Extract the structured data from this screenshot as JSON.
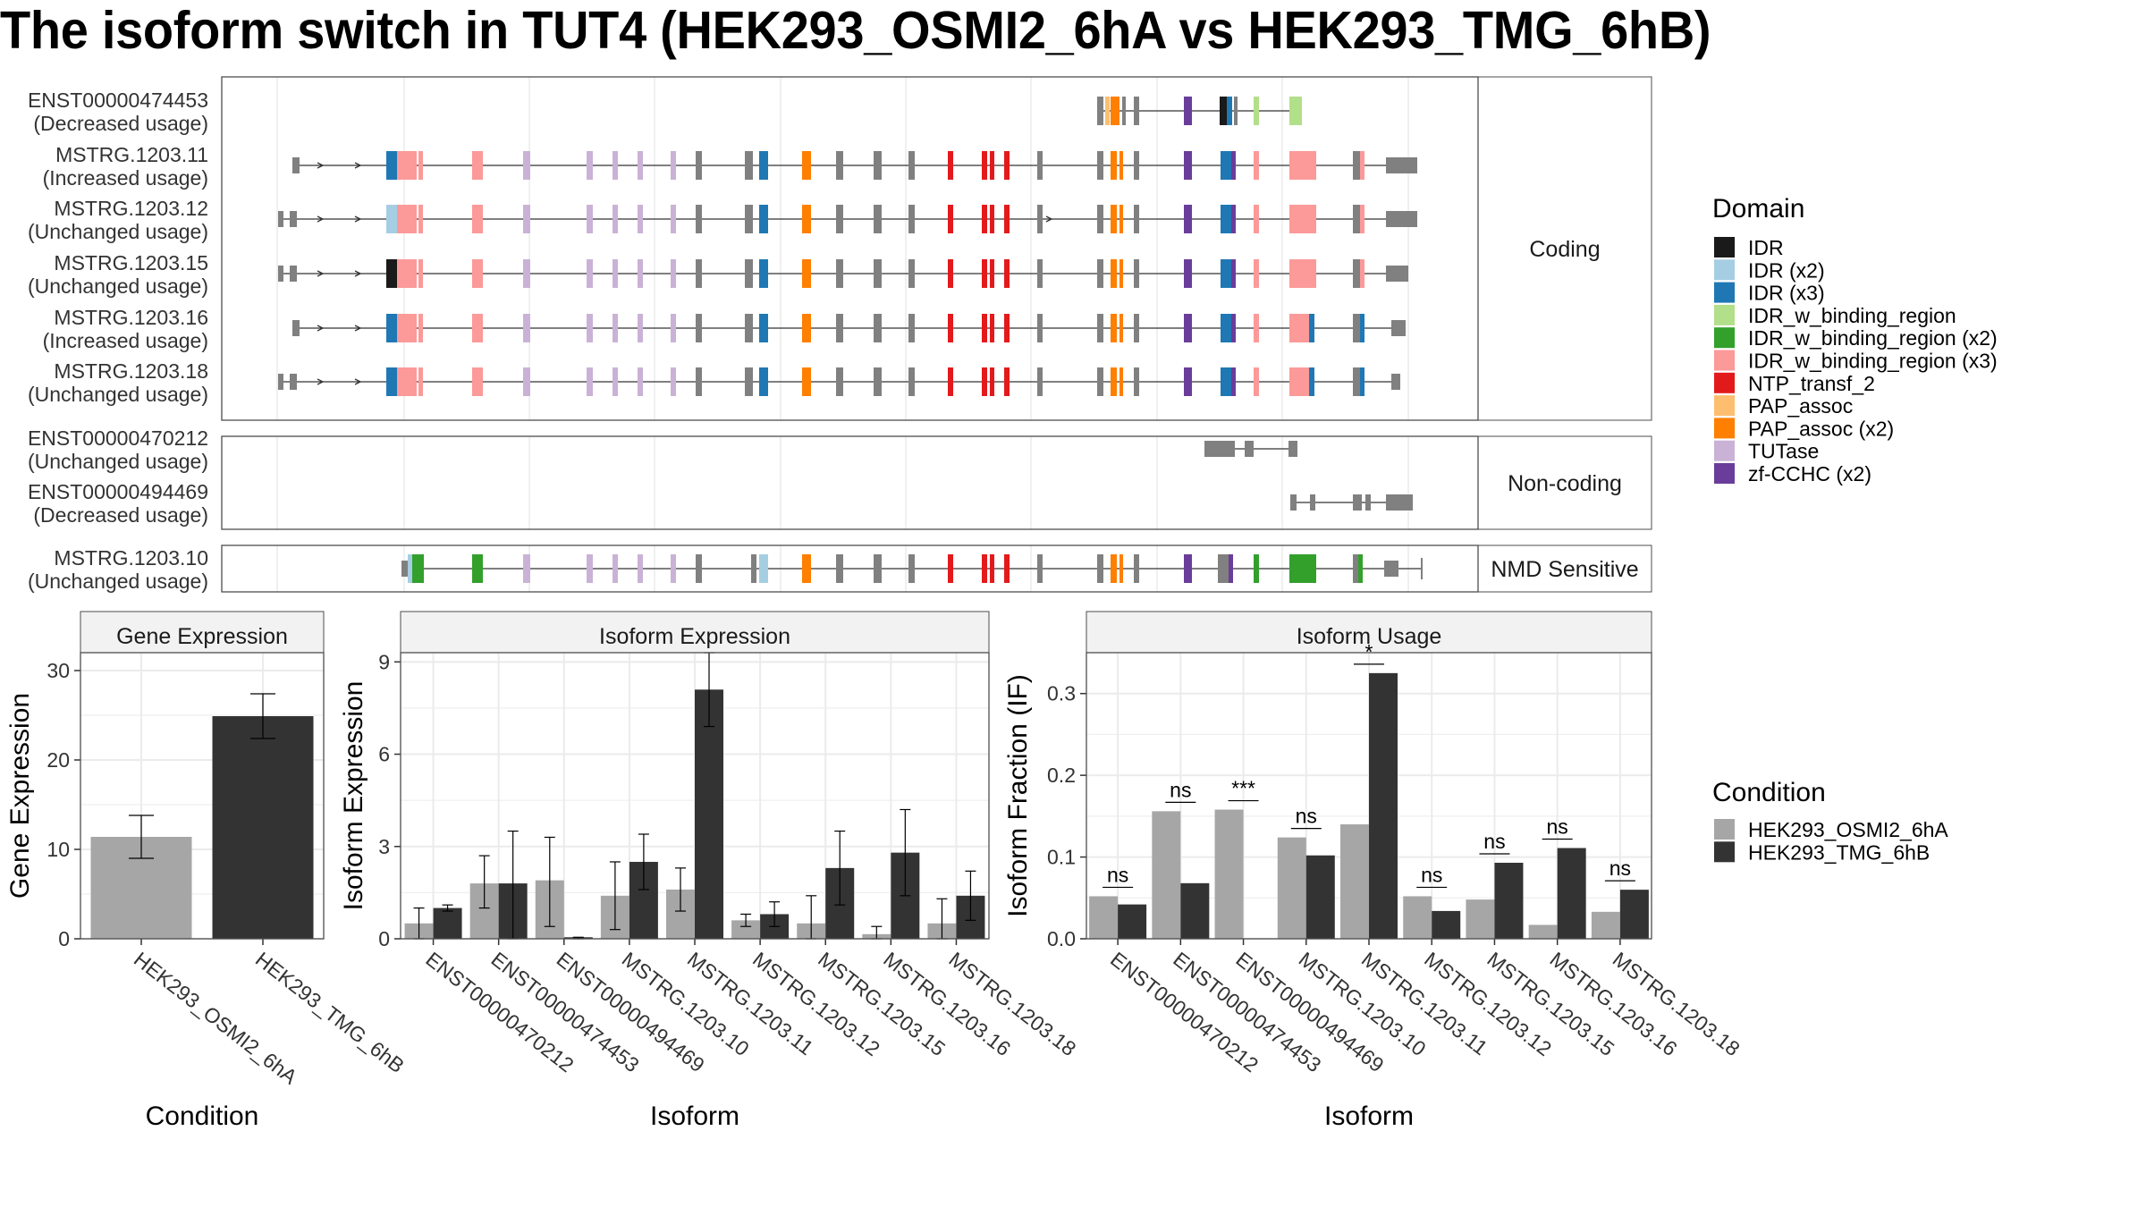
{
  "title": "The isoform switch in TUT4 (HEK293_OSMI2_6hA vs HEK293_TMG_6hB)",
  "colors": {
    "intron": "#333333",
    "exon_noncoding": "#808080",
    "domain_colors": {
      "IDR": "#1a1a1a",
      "IDR (x2)": "#a6cee3",
      "IDR (x3)": "#1f78b4",
      "IDR_w_binding_region": "#b2df8a",
      "IDR_w_binding_region (x2)": "#33a02c",
      "IDR_w_binding_region (x3)": "#fb9a99",
      "NTP_transf_2": "#e31a1c",
      "PAP_assoc": "#fdbf6f",
      "PAP_assoc (x2)": "#ff7f00",
      "TUTase": "#cab2d6",
      "zf-CCHC (x2)": "#6a3d9a"
    },
    "condition_colors": [
      "#a6a6a6",
      "#333333"
    ]
  },
  "structure": {
    "facets": [
      "Coding",
      "Non-coding",
      "NMD Sensitive"
    ],
    "transcripts": [
      {
        "id": "ENST00000474453",
        "usage": "(Decreased usage)",
        "facet": "Coding"
      },
      {
        "id": "MSTRG.1203.11",
        "usage": "(Increased usage)",
        "facet": "Coding"
      },
      {
        "id": "MSTRG.1203.12",
        "usage": "(Unchanged usage)",
        "facet": "Coding"
      },
      {
        "id": "MSTRG.1203.15",
        "usage": "(Unchanged usage)",
        "facet": "Coding"
      },
      {
        "id": "MSTRG.1203.16",
        "usage": "(Increased usage)",
        "facet": "Coding"
      },
      {
        "id": "MSTRG.1203.18",
        "usage": "(Unchanged usage)",
        "facet": "Coding"
      },
      {
        "id": "ENST00000470212",
        "usage": "(Unchanged usage)",
        "facet": "Non-coding"
      },
      {
        "id": "ENST00000494469",
        "usage": "(Decreased usage)",
        "facet": "Non-coding"
      },
      {
        "id": "MSTRG.1203.10",
        "usage": "(Unchanged usage)",
        "facet": "NMD Sensitive"
      }
    ]
  },
  "legend_domain": {
    "title": "Domain",
    "items": [
      "IDR",
      "IDR (x2)",
      "IDR (x3)",
      "IDR_w_binding_region",
      "IDR_w_binding_region (x2)",
      "IDR_w_binding_region (x3)",
      "NTP_transf_2",
      "PAP_assoc",
      "PAP_assoc (x2)",
      "TUTase",
      "zf-CCHC (x2)"
    ]
  },
  "legend_condition": {
    "title": "Condition",
    "items": [
      "HEK293_OSMI2_6hA",
      "HEK293_TMG_6hB"
    ]
  },
  "chart_data": [
    {
      "type": "bar",
      "title": "Gene Expression",
      "xlabel": "Condition",
      "ylabel": "Gene Expression",
      "categories": [
        "HEK293_OSMI2_6hA",
        "HEK293_TMG_6hB"
      ],
      "values": [
        11.4,
        24.9
      ],
      "error_low": [
        9.0,
        22.4
      ],
      "error_high": [
        13.8,
        27.4
      ],
      "ylim": [
        0,
        32
      ],
      "yticks": [
        0,
        10,
        20,
        30
      ]
    },
    {
      "type": "bar",
      "title": "Isoform Expression",
      "xlabel": "Isoform",
      "ylabel": "Isoform Expression",
      "categories": [
        "ENST00000470212",
        "ENST00000474453",
        "ENST00000494469",
        "MSTRG.1203.10",
        "MSTRG.1203.11",
        "MSTRG.1203.12",
        "MSTRG.1203.15",
        "MSTRG.1203.16",
        "MSTRG.1203.18"
      ],
      "series": [
        {
          "name": "HEK293_OSMI2_6hA",
          "values": [
            0.5,
            1.8,
            1.9,
            1.4,
            1.6,
            0.6,
            0.5,
            0.15,
            0.5
          ],
          "error_low": [
            0.0,
            1.0,
            0.4,
            0.3,
            0.9,
            0.4,
            0.0,
            0.0,
            0.0
          ],
          "error_high": [
            1.0,
            2.7,
            3.3,
            2.5,
            2.3,
            0.8,
            1.4,
            0.4,
            1.3
          ]
        },
        {
          "name": "HEK293_TMG_6hB",
          "values": [
            1.0,
            1.8,
            0.05,
            2.5,
            8.1,
            0.8,
            2.3,
            2.8,
            1.4
          ],
          "error_low": [
            0.9,
            0.0,
            0.0,
            1.6,
            6.9,
            0.4,
            1.1,
            1.4,
            0.6
          ],
          "error_high": [
            1.1,
            3.5,
            0.05,
            3.4,
            9.3,
            1.2,
            3.5,
            4.2,
            2.2
          ]
        }
      ],
      "ylim": [
        0,
        9.3
      ],
      "yticks": [
        0,
        3,
        6,
        9
      ]
    },
    {
      "type": "bar",
      "title": "Isoform Usage",
      "xlabel": "Isoform",
      "ylabel": "Isoform Fraction (IF)",
      "categories": [
        "ENST00000470212",
        "ENST00000474453",
        "ENST00000494469",
        "MSTRG.1203.10",
        "MSTRG.1203.11",
        "MSTRG.1203.12",
        "MSTRG.1203.15",
        "MSTRG.1203.16",
        "MSTRG.1203.18"
      ],
      "series": [
        {
          "name": "HEK293_OSMI2_6hA",
          "values": [
            0.052,
            0.156,
            0.158,
            0.124,
            0.14,
            0.052,
            0.048,
            0.017,
            0.033
          ]
        },
        {
          "name": "HEK293_TMG_6hB",
          "values": [
            0.042,
            0.068,
            0.0,
            0.102,
            0.325,
            0.034,
            0.093,
            0.111,
            0.06
          ]
        }
      ],
      "significance": [
        "ns",
        "ns",
        "***",
        "ns",
        "*",
        "ns",
        "ns",
        "ns",
        "ns"
      ],
      "ylim": [
        0,
        0.35
      ],
      "yticks": [
        0.0,
        0.1,
        0.2,
        0.3
      ],
      "ytick_labels": [
        "0.0",
        "0.1",
        "0.2",
        "0.3"
      ]
    }
  ]
}
